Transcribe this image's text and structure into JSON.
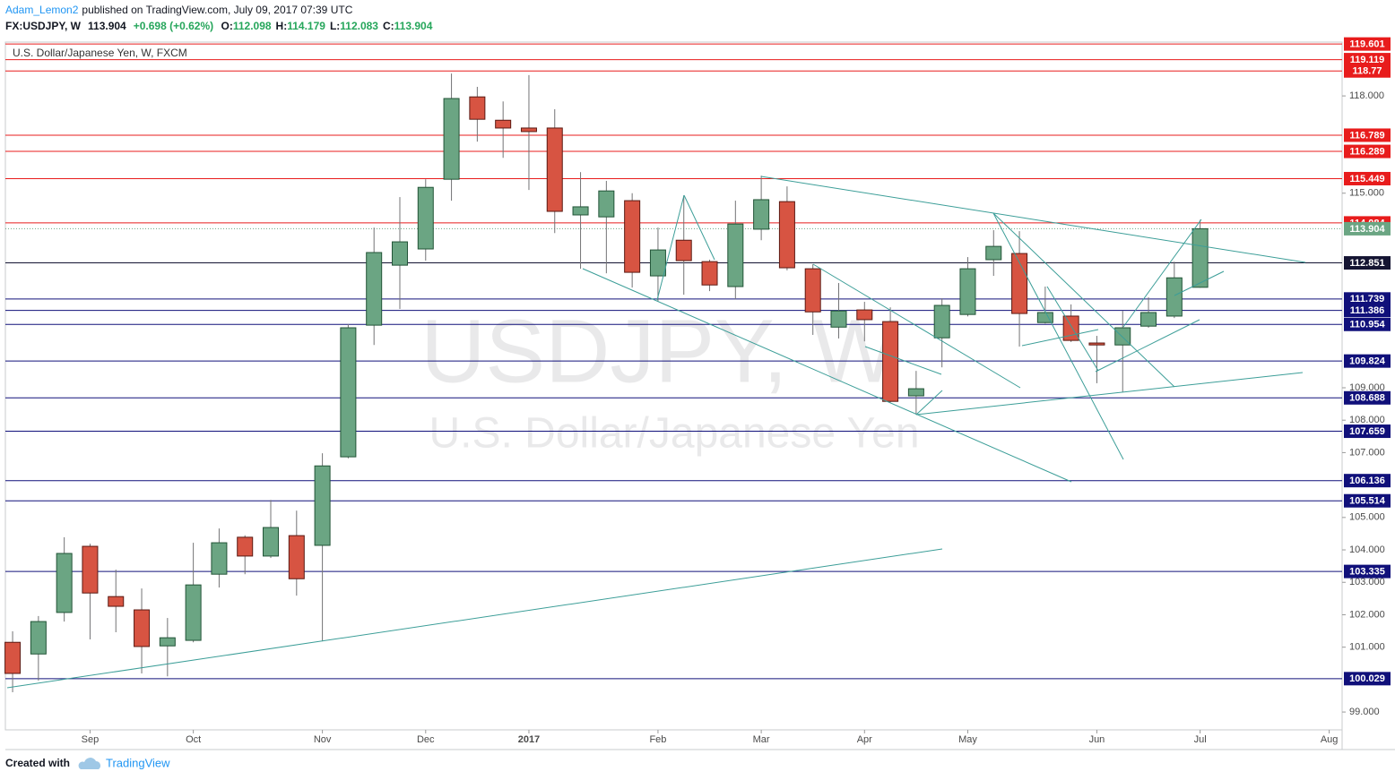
{
  "header": {
    "author": "Adam_Lemon2",
    "published": "published on TradingView.com, July 09, 2017 07:39 UTC",
    "symbol": "FX:USDJPY, W",
    "last": "113.904",
    "change": "+0.698 (+0.62%)",
    "ohlc": [
      {
        "label": "O:",
        "value": "112.098"
      },
      {
        "label": "H:",
        "value": "114.179"
      },
      {
        "label": "L:",
        "value": "112.083"
      },
      {
        "label": "C:",
        "value": "113.904"
      }
    ]
  },
  "chart_data": {
    "type": "candlestick",
    "legend": "U.S. Dollar/Japanese Yen, W, FXCM",
    "watermark": [
      "USDJPY, W",
      "U.S. Dollar/Japanese Yen"
    ],
    "up_color": "#6ba583",
    "down_color": "#d75442",
    "open": [
      101.15,
      100.79,
      102.07,
      104.11,
      102.56,
      102.15,
      101.04,
      101.21,
      103.25,
      104.39,
      103.81,
      104.44,
      104.14,
      106.87,
      110.93,
      112.78,
      113.28,
      115.43,
      117.97,
      117.25,
      117.01,
      117.01,
      114.33,
      114.27,
      114.77,
      112.45,
      113.55,
      112.89,
      112.12,
      113.89,
      114.74,
      112.67,
      110.87,
      111.4,
      111.04,
      108.75,
      110.54,
      111.26,
      112.95,
      113.14,
      111.01,
      111.21,
      110.38,
      110.32,
      110.9,
      111.21,
      112.098
    ],
    "high": [
      101.49,
      101.96,
      104.39,
      104.19,
      103.39,
      102.81,
      101.9,
      104.22,
      104.66,
      104.45,
      105.54,
      105.21,
      106.98,
      110.96,
      113.94,
      114.88,
      115.43,
      118.69,
      118.28,
      117.83,
      118.64,
      117.59,
      115.65,
      115.38,
      115.0,
      113.94,
      114.93,
      112.95,
      114.77,
      115.54,
      115.21,
      112.81,
      112.23,
      111.65,
      111.48,
      109.52,
      111.76,
      113.03,
      113.86,
      113.83,
      112.12,
      111.57,
      110.6,
      111.37,
      111.79,
      112.89,
      114.179
    ],
    "low": [
      99.61,
      99.97,
      101.79,
      101.24,
      101.46,
      100.19,
      100.1,
      101.15,
      102.84,
      103.25,
      103.75,
      102.59,
      101.18,
      106.82,
      110.32,
      111.43,
      112.92,
      114.77,
      116.59,
      116.09,
      115.1,
      113.77,
      112.67,
      112.53,
      112.09,
      111.65,
      111.87,
      111.98,
      111.73,
      113.55,
      112.62,
      110.63,
      110.52,
      110.43,
      108.55,
      108.17,
      109.63,
      111.2,
      112.45,
      110.27,
      110.98,
      110.41,
      109.14,
      108.86,
      110.85,
      111.15,
      112.083
    ],
    "close": [
      100.19,
      101.79,
      103.89,
      102.67,
      102.26,
      101.02,
      101.29,
      102.92,
      104.22,
      103.81,
      104.69,
      103.11,
      106.59,
      110.85,
      113.17,
      113.5,
      115.18,
      117.92,
      117.28,
      117.01,
      116.9,
      114.44,
      114.58,
      115.07,
      112.56,
      113.25,
      112.92,
      112.17,
      114.05,
      114.8,
      112.7,
      111.34,
      111.37,
      111.1,
      108.58,
      108.97,
      111.54,
      112.67,
      113.36,
      111.29,
      111.32,
      110.46,
      110.32,
      110.85,
      111.32,
      112.39,
      113.904
    ],
    "xlim": [
      -0.28,
      51.5
    ],
    "xticks": [
      {
        "value": 3,
        "label": "Sep"
      },
      {
        "value": 7,
        "label": "Oct"
      },
      {
        "value": 12,
        "label": "Nov"
      },
      {
        "value": 16,
        "label": "Dec"
      },
      {
        "value": 20,
        "label": "2017"
      },
      {
        "value": 25,
        "label": "Feb"
      },
      {
        "value": 29,
        "label": "Mar"
      },
      {
        "value": 33,
        "label": "Apr"
      },
      {
        "value": 37,
        "label": "May"
      },
      {
        "value": 42,
        "label": "Jun"
      },
      {
        "value": 46,
        "label": "Jul"
      },
      {
        "value": 51,
        "label": "Aug"
      }
    ],
    "ylim": [
      98.45,
      119.66
    ],
    "yticks": [
      {
        "value": 118,
        "label": "118.000"
      },
      {
        "value": 115,
        "label": "115.000"
      },
      {
        "value": 109,
        "label": "109.000"
      },
      {
        "value": 108,
        "label": "108.000"
      },
      {
        "value": 107,
        "label": "107.000"
      },
      {
        "value": 105,
        "label": "105.000"
      },
      {
        "value": 104,
        "label": "104.000"
      },
      {
        "value": 103,
        "label": "103.000"
      },
      {
        "value": 102,
        "label": "102.000"
      },
      {
        "value": 101,
        "label": "101.000"
      },
      {
        "value": 99,
        "label": "99.000"
      }
    ],
    "levels": [
      {
        "value": 119.601,
        "color": "#e81c1c"
      },
      {
        "value": 119.119,
        "color": "#e81c1c"
      },
      {
        "value": 118.77,
        "color": "#e81c1c"
      },
      {
        "value": 116.789,
        "color": "#e81c1c"
      },
      {
        "value": 116.289,
        "color": "#e81c1c"
      },
      {
        "value": 115.449,
        "color": "#e81c1c"
      },
      {
        "value": 114.084,
        "color": "#e81c1c"
      },
      {
        "value": 112.851,
        "color": "#141432"
      },
      {
        "value": 111.739,
        "color": "#10107a"
      },
      {
        "value": 111.386,
        "color": "#10107a"
      },
      {
        "value": 110.954,
        "color": "#10107a"
      },
      {
        "value": 109.824,
        "color": "#10107a"
      },
      {
        "value": 108.688,
        "color": "#10107a"
      },
      {
        "value": 107.659,
        "color": "#10107a"
      },
      {
        "value": 106.136,
        "color": "#10107a"
      },
      {
        "value": 105.514,
        "color": "#10107a"
      },
      {
        "value": 103.335,
        "color": "#10107a"
      },
      {
        "value": 100.029,
        "color": "#10107a"
      }
    ],
    "last_price": {
      "value": 113.904,
      "color": "#6ba583"
    }
  },
  "footer": {
    "created": "Created with",
    "brand": "TradingView"
  }
}
